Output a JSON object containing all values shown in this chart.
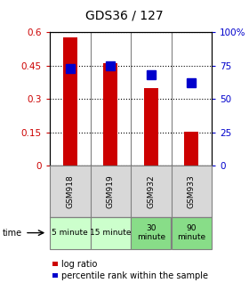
{
  "title": "GDS36 / 127",
  "categories": [
    "GSM918",
    "GSM919",
    "GSM932",
    "GSM933"
  ],
  "time_labels": [
    "5 minute",
    "15 minute",
    "30\nminute",
    "90\nminute"
  ],
  "time_colors": [
    "#ccffcc",
    "#ccffcc",
    "#88dd88",
    "#88dd88"
  ],
  "bar_values": [
    0.575,
    0.462,
    0.348,
    0.152
  ],
  "bar_color": "#cc0000",
  "percentile_values": [
    73,
    75,
    68,
    62
  ],
  "percentile_color": "#0000cc",
  "left_ylim": [
    0,
    0.6
  ],
  "right_ylim": [
    0,
    100
  ],
  "left_yticks": [
    0,
    0.15,
    0.3,
    0.45,
    0.6
  ],
  "left_yticklabels": [
    "0",
    "0.15",
    "0.3",
    "0.45",
    "0.6"
  ],
  "right_yticks": [
    0,
    25,
    50,
    75,
    100
  ],
  "right_yticklabels": [
    "0",
    "25",
    "50",
    "75",
    "100%"
  ],
  "left_tick_color": "#cc0000",
  "right_tick_color": "#0000cc",
  "grid_color": "#000000",
  "bg_color": "#ffffff",
  "bar_width": 0.35,
  "legend_items": [
    "log ratio",
    "percentile rank within the sample"
  ],
  "legend_colors": [
    "#cc0000",
    "#0000cc"
  ],
  "time_label": "time",
  "marker_size": 7
}
